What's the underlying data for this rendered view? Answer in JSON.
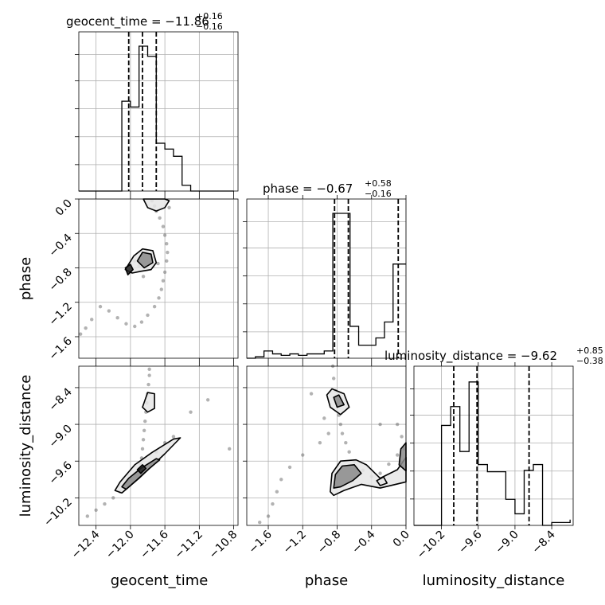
{
  "chart_data": {
    "type": "corner",
    "parameters": [
      "geocent_time",
      "phase",
      "luminosity_distance"
    ],
    "axis_labels": {
      "geocent_time": "geocent_time",
      "phase": "phase",
      "luminosity_distance": "luminosity_distance"
    },
    "titles": [
      {
        "param": "geocent_time",
        "label": "geocent_time = −11.86",
        "plus": "+0.16",
        "minus": "−0.16"
      },
      {
        "param": "phase",
        "label": "phase = −0.67",
        "plus": "+0.58",
        "minus": "−0.16"
      },
      {
        "param": "luminosity_distance",
        "label": "luminosity_distance = −9.62",
        "plus": "+0.85",
        "minus": "−0.38"
      }
    ],
    "axis_ranges": {
      "geocent_time": [
        -12.6,
        -10.75
      ],
      "phase": [
        -1.85,
        0.0
      ],
      "luminosity_distance": [
        -10.65,
        -8.05
      ]
    },
    "ticks": {
      "geocent_time": [
        "−12.4",
        "−12.0",
        "−11.6",
        "−11.2",
        "−10.8"
      ],
      "phase": [
        "−1.6",
        "−1.2",
        "−0.8",
        "−0.4",
        "0.0"
      ],
      "luminosity_distance": [
        "−10.2",
        "−9.6",
        "−9.0",
        "−8.4"
      ]
    },
    "tick_values": {
      "geocent_time": [
        -12.4,
        -12.0,
        -11.6,
        -11.2,
        -10.8
      ],
      "phase": [
        -1.6,
        -1.2,
        -0.8,
        -0.4,
        0.0
      ],
      "luminosity_distance": [
        -10.2,
        -9.6,
        -9.0,
        -8.4
      ]
    },
    "histograms": [
      {
        "param": "geocent_time",
        "edges": [
          -12.6,
          -12.5,
          -12.4,
          -12.3,
          -12.2,
          -12.1,
          -12.0,
          -11.9,
          -11.8,
          -11.7,
          -11.6,
          -11.5,
          -11.4,
          -11.3,
          -11.2,
          -11.1,
          -11.0,
          -10.9,
          -10.8
        ],
        "counts": [
          0.0,
          0.0,
          0.0,
          0.0,
          0.0,
          0.62,
          0.58,
          1.0,
          0.93,
          0.33,
          0.29,
          0.24,
          0.04,
          0.0,
          0.0,
          0.0,
          0.0,
          0.0
        ],
        "quantiles": [
          -12.02,
          -11.86,
          -11.7
        ]
      },
      {
        "param": "phase",
        "edges": [
          -1.85,
          -1.75,
          -1.65,
          -1.55,
          -1.45,
          -1.35,
          -1.25,
          -1.15,
          -1.05,
          -0.95,
          -0.85,
          -0.75,
          -0.65,
          -0.55,
          -0.45,
          -0.35,
          -0.25,
          -0.15,
          -0.05,
          0.0
        ],
        "counts": [
          0.0,
          0.01,
          0.05,
          0.03,
          0.02,
          0.03,
          0.02,
          0.03,
          0.03,
          0.05,
          1.0,
          1.0,
          0.22,
          0.09,
          0.09,
          0.14,
          0.25,
          0.65,
          0.65
        ],
        "quantiles": [
          -0.83,
          -0.67,
          -0.09
        ]
      },
      {
        "param": "luminosity_distance",
        "edges": [
          -10.65,
          -10.5,
          -10.35,
          -10.2,
          -10.05,
          -9.9,
          -9.75,
          -9.6,
          -9.45,
          -9.3,
          -9.15,
          -9.0,
          -8.85,
          -8.7,
          -8.55,
          -8.4,
          -8.25,
          -8.1
        ],
        "counts": [
          0.0,
          0.0,
          0.0,
          0.69,
          0.82,
          0.51,
          0.99,
          0.42,
          0.37,
          0.37,
          0.18,
          0.08,
          0.38,
          0.42,
          0.0,
          0.02,
          0.02,
          0.04
        ],
        "quantiles": [
          -10.0,
          -9.62,
          -8.77
        ]
      }
    ],
    "scatter_2d": [
      {
        "x_param": "geocent_time",
        "y_param": "phase",
        "samples": [
          [
            -11.75,
            -0.02
          ],
          [
            -11.72,
            -0.08
          ],
          [
            -11.7,
            -0.14
          ],
          [
            -11.66,
            -0.22
          ],
          [
            -11.62,
            -0.32
          ],
          [
            -11.6,
            -0.42
          ],
          [
            -11.58,
            -0.52
          ],
          [
            -11.57,
            -0.62
          ],
          [
            -11.58,
            -0.72
          ],
          [
            -11.6,
            -0.85
          ],
          [
            -11.62,
            -0.95
          ],
          [
            -11.64,
            -1.05
          ],
          [
            -11.67,
            -1.15
          ],
          [
            -11.72,
            -1.25
          ],
          [
            -11.8,
            -1.35
          ],
          [
            -11.87,
            -1.43
          ],
          [
            -11.95,
            -1.48
          ],
          [
            -12.05,
            -1.45
          ],
          [
            -12.15,
            -1.38
          ],
          [
            -12.25,
            -1.3
          ],
          [
            -12.35,
            -1.25
          ],
          [
            -12.45,
            -1.4
          ],
          [
            -12.52,
            -1.5
          ],
          [
            -12.58,
            -1.57
          ],
          [
            -11.9,
            -0.78
          ],
          [
            -11.95,
            -0.72
          ],
          [
            -11.75,
            -0.68
          ],
          [
            -11.82,
            -0.6
          ],
          [
            -12.0,
            -0.82
          ],
          [
            -11.68,
            -0.75
          ],
          [
            -11.85,
            -0.9
          ],
          [
            -11.55,
            -0.1
          ]
        ],
        "contours": [
          {
            "level": 1,
            "points": [
              [
                -12.06,
                -0.82
              ],
              [
                -11.96,
                -0.66
              ],
              [
                -11.86,
                -0.58
              ],
              [
                -11.74,
                -0.6
              ],
              [
                -11.7,
                -0.74
              ],
              [
                -11.76,
                -0.82
              ],
              [
                -11.88,
                -0.84
              ],
              [
                -11.98,
                -0.86
              ]
            ]
          },
          {
            "level": 2,
            "points": [
              [
                -11.92,
                -0.72
              ],
              [
                -11.86,
                -0.62
              ],
              [
                -11.76,
                -0.64
              ],
              [
                -11.74,
                -0.74
              ],
              [
                -11.84,
                -0.8
              ]
            ]
          },
          {
            "level": 1,
            "points": [
              [
                -11.85,
                0.0
              ],
              [
                -11.8,
                -0.1
              ],
              [
                -11.7,
                -0.14
              ],
              [
                -11.6,
                -0.1
              ],
              [
                -11.55,
                -0.02
              ],
              [
                -11.6,
                0.0
              ]
            ]
          },
          {
            "level": 3,
            "points": [
              [
                -12.06,
                -0.8
              ],
              [
                -12.0,
                -0.76
              ],
              [
                -11.97,
                -0.82
              ],
              [
                -12.03,
                -0.88
              ]
            ]
          }
        ]
      },
      {
        "x_param": "geocent_time",
        "y_param": "luminosity_distance",
        "samples": [
          [
            -11.78,
            -8.1
          ],
          [
            -11.78,
            -8.2
          ],
          [
            -11.79,
            -8.35
          ],
          [
            -11.8,
            -8.5
          ],
          [
            -11.81,
            -8.65
          ],
          [
            -11.82,
            -8.8
          ],
          [
            -11.83,
            -8.95
          ],
          [
            -11.84,
            -9.1
          ],
          [
            -11.85,
            -9.25
          ],
          [
            -11.86,
            -9.4
          ],
          [
            -11.87,
            -9.55
          ],
          [
            -11.88,
            -9.65
          ],
          [
            -11.95,
            -9.8
          ],
          [
            -12.0,
            -9.9
          ],
          [
            -12.05,
            -10.0
          ],
          [
            -12.12,
            -10.1
          ],
          [
            -12.2,
            -10.2
          ],
          [
            -12.3,
            -10.3
          ],
          [
            -12.4,
            -10.4
          ],
          [
            -12.5,
            -10.5
          ],
          [
            -11.7,
            -9.45
          ],
          [
            -11.6,
            -9.3
          ],
          [
            -11.5,
            -9.2
          ],
          [
            -11.3,
            -8.8
          ],
          [
            -11.1,
            -8.6
          ],
          [
            -10.85,
            -9.4
          ]
        ],
        "contours": [
          {
            "level": 1,
            "points": [
              [
                -12.1,
                -10.12
              ],
              [
                -11.9,
                -9.88
              ],
              [
                -11.6,
                -9.48
              ],
              [
                -11.42,
                -9.22
              ],
              [
                -11.5,
                -9.24
              ],
              [
                -11.75,
                -9.46
              ],
              [
                -11.95,
                -9.66
              ],
              [
                -12.12,
                -9.94
              ],
              [
                -12.18,
                -10.08
              ]
            ]
          },
          {
            "level": 2,
            "points": [
              [
                -12.05,
                -10.06
              ],
              [
                -11.92,
                -9.9
              ],
              [
                -11.78,
                -9.72
              ],
              [
                -11.66,
                -9.58
              ],
              [
                -11.7,
                -9.56
              ],
              [
                -11.88,
                -9.72
              ],
              [
                -12.02,
                -9.88
              ],
              [
                -12.1,
                -10.02
              ]
            ]
          },
          {
            "level": 1,
            "points": [
              [
                -11.86,
                -8.72
              ],
              [
                -11.8,
                -8.48
              ],
              [
                -11.72,
                -8.5
              ],
              [
                -11.72,
                -8.74
              ],
              [
                -11.8,
                -8.8
              ]
            ]
          },
          {
            "level": 3,
            "points": [
              [
                -11.92,
                -9.74
              ],
              [
                -11.86,
                -9.66
              ],
              [
                -11.82,
                -9.72
              ],
              [
                -11.88,
                -9.8
              ]
            ]
          }
        ]
      },
      {
        "x_param": "phase",
        "y_param": "luminosity_distance",
        "samples": [
          [
            -0.85,
            -8.05
          ],
          [
            -0.84,
            -8.25
          ],
          [
            -0.82,
            -8.45
          ],
          [
            -0.8,
            -8.65
          ],
          [
            -0.78,
            -8.85
          ],
          [
            -0.76,
            -9.0
          ],
          [
            -0.74,
            -9.15
          ],
          [
            -0.7,
            -9.3
          ],
          [
            -0.66,
            -9.45
          ],
          [
            -0.6,
            -9.6
          ],
          [
            -0.5,
            -9.75
          ],
          [
            -0.4,
            -9.85
          ],
          [
            -0.3,
            -9.8
          ],
          [
            -0.2,
            -9.65
          ],
          [
            -0.1,
            -9.5
          ],
          [
            -0.02,
            -9.4
          ],
          [
            -1.2,
            -9.5
          ],
          [
            -1.35,
            -9.7
          ],
          [
            -1.45,
            -9.9
          ],
          [
            -1.5,
            -10.1
          ],
          [
            -1.55,
            -10.3
          ],
          [
            -1.6,
            -10.5
          ],
          [
            -1.0,
            -9.3
          ],
          [
            -0.9,
            -9.15
          ],
          [
            -0.3,
            -9.0
          ],
          [
            -0.1,
            -9.0
          ],
          [
            -0.05,
            -9.2
          ],
          [
            -1.1,
            -8.5
          ],
          [
            -0.95,
            -8.9
          ],
          [
            -1.7,
            -10.6
          ]
        ],
        "contours": [
          {
            "level": 1,
            "points": [
              [
                -0.92,
                -8.52
              ],
              [
                -0.86,
                -8.42
              ],
              [
                -0.72,
                -8.5
              ],
              [
                -0.66,
                -8.72
              ],
              [
                -0.76,
                -8.84
              ],
              [
                -0.88,
                -8.72
              ]
            ]
          },
          {
            "level": 2,
            "points": [
              [
                -0.84,
                -8.56
              ],
              [
                -0.78,
                -8.52
              ],
              [
                -0.72,
                -8.68
              ],
              [
                -0.8,
                -8.72
              ]
            ]
          },
          {
            "level": 1,
            "points": [
              [
                -0.88,
                -10.1
              ],
              [
                -0.86,
                -9.8
              ],
              [
                -0.76,
                -9.6
              ],
              [
                -0.58,
                -9.58
              ],
              [
                -0.46,
                -9.66
              ],
              [
                -0.3,
                -9.88
              ],
              [
                -0.1,
                -9.74
              ],
              [
                0.0,
                -9.54
              ],
              [
                0.0,
                -9.94
              ],
              [
                -0.3,
                -10.04
              ],
              [
                -0.52,
                -9.98
              ],
              [
                -0.72,
                -10.08
              ],
              [
                -0.84,
                -10.16
              ]
            ]
          },
          {
            "level": 2,
            "points": [
              [
                -0.84,
                -10.04
              ],
              [
                -0.82,
                -9.82
              ],
              [
                -0.74,
                -9.68
              ],
              [
                -0.6,
                -9.66
              ],
              [
                -0.52,
                -9.8
              ],
              [
                -0.62,
                -9.92
              ],
              [
                -0.76,
                -10.02
              ]
            ]
          },
          {
            "level": 1,
            "points": [
              [
                -0.34,
                -9.92
              ],
              [
                -0.26,
                -9.86
              ],
              [
                -0.22,
                -9.96
              ],
              [
                -0.3,
                -10.0
              ]
            ]
          },
          {
            "level": 2,
            "points": [
              [
                -0.06,
                -9.4
              ],
              [
                0.0,
                -9.3
              ],
              [
                0.0,
                -9.76
              ],
              [
                -0.08,
                -9.66
              ]
            ]
          }
        ]
      }
    ],
    "grid": true,
    "colors": {
      "line": "#000000",
      "quantile": "#000000",
      "points": "#555555",
      "fill": "#b0b0b0"
    }
  }
}
